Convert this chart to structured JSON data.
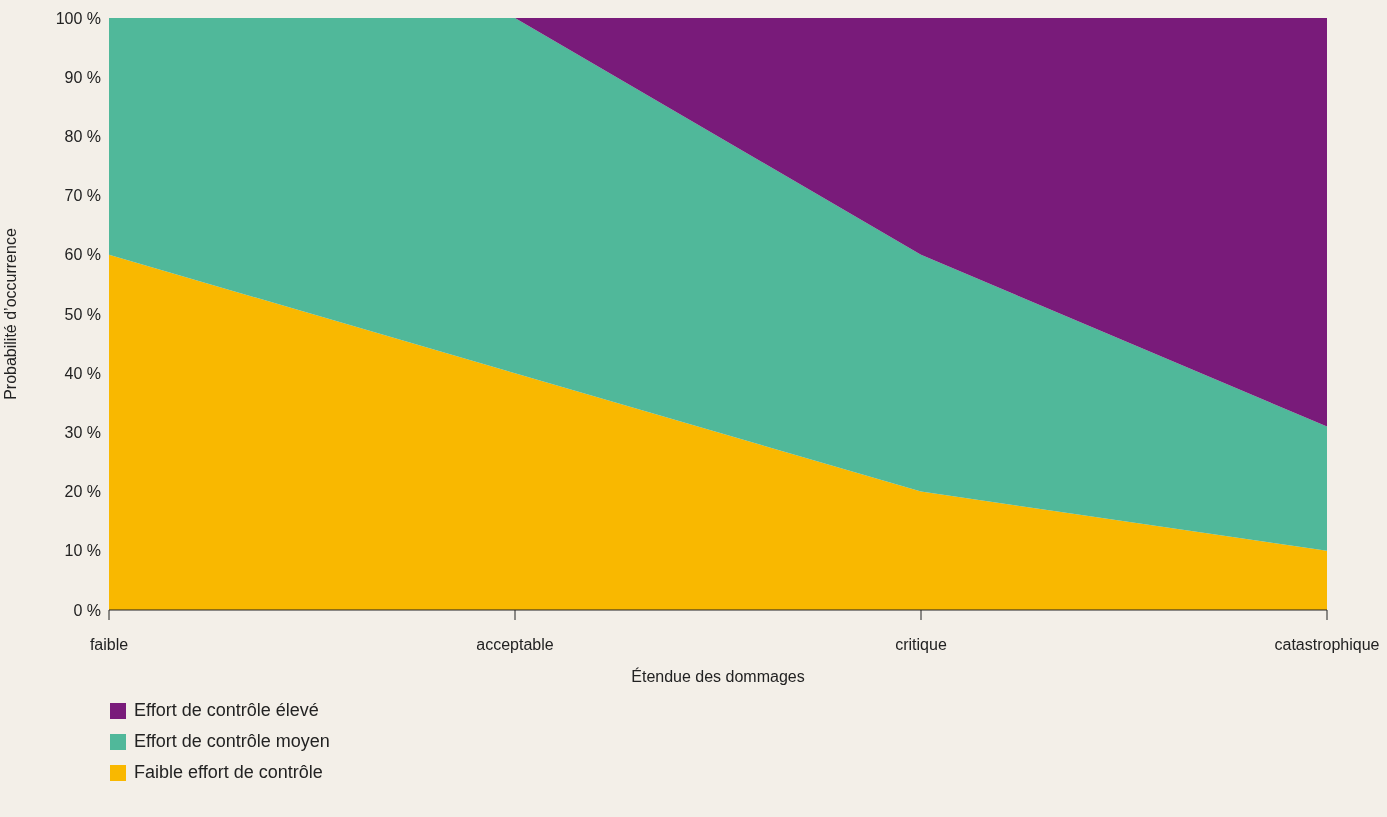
{
  "chart_data": {
    "type": "area",
    "stacked": true,
    "xlabel": "Étendue des dommages",
    "ylabel": "Probabilité d’occurrence",
    "categories": [
      "faible",
      "acceptable",
      "critique",
      "catastrophique"
    ],
    "series": [
      {
        "name": "Faible effort de contrôle",
        "color": "#f9b800",
        "values": [
          60,
          40,
          20,
          10
        ]
      },
      {
        "name": "Effort de contrôle moyen",
        "color": "#50b89a",
        "values": [
          40,
          60,
          40,
          21
        ]
      },
      {
        "name": "Effort de contrôle élevé",
        "color": "#791b7a",
        "values": [
          0,
          0,
          40,
          69
        ]
      }
    ],
    "ylim": [
      0,
      100
    ],
    "yticks": [
      {
        "value": 0,
        "label": "0 %"
      },
      {
        "value": 10,
        "label": "10 %"
      },
      {
        "value": 20,
        "label": "20 %"
      },
      {
        "value": 30,
        "label": "30 %"
      },
      {
        "value": 40,
        "label": "40 %"
      },
      {
        "value": 50,
        "label": "50 %"
      },
      {
        "value": 60,
        "label": "60 %"
      },
      {
        "value": 70,
        "label": "70 %"
      },
      {
        "value": 80,
        "label": "80 %"
      },
      {
        "value": 90,
        "label": "90 %"
      },
      {
        "value": 100,
        "label": "100 %"
      }
    ],
    "legend": "bottom left"
  }
}
